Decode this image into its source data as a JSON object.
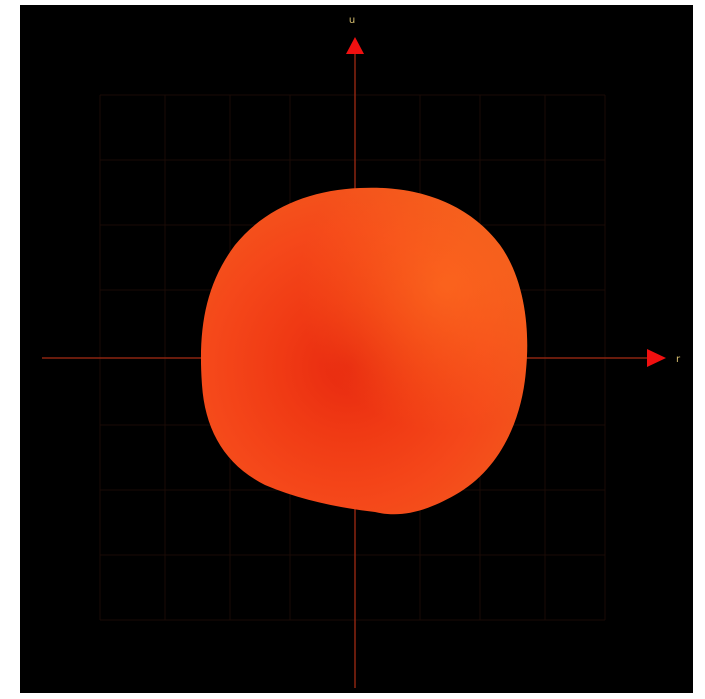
{
  "axes": {
    "vertical_label": "u",
    "horizontal_label": "r"
  }
}
